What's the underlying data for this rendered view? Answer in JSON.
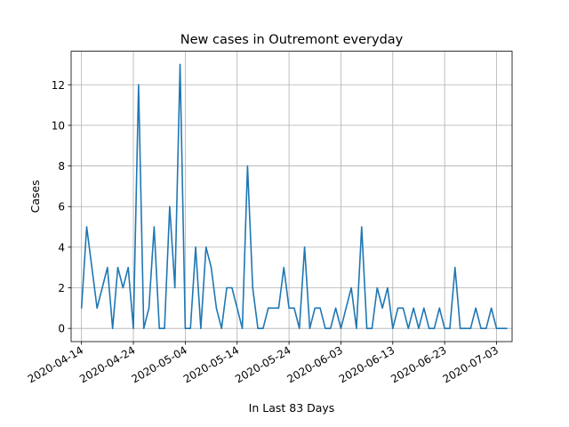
{
  "chart_data": {
    "type": "line",
    "title": "New cases in Outremont everyday",
    "xlabel": "In Last 83 Days",
    "ylabel": "Cases",
    "start_date": "2020-04-14",
    "x_ticks": [
      "2020-04-14",
      "2020-04-24",
      "2020-05-04",
      "2020-05-14",
      "2020-05-24",
      "2020-06-03",
      "2020-06-13",
      "2020-06-23",
      "2020-07-03"
    ],
    "y_ticks": [
      0,
      2,
      4,
      6,
      8,
      10,
      12
    ],
    "xlim": [
      "2020-04-12",
      "2020-07-06"
    ],
    "ylim": [
      -0.65,
      13.65
    ],
    "grid": true,
    "series": [
      {
        "color": "#1f77b4",
        "values": [
          1,
          5,
          3,
          1,
          2,
          3,
          0,
          3,
          2,
          3,
          0,
          12,
          0,
          1,
          5,
          0,
          0,
          6,
          2,
          13,
          0,
          0,
          4,
          0,
          4,
          3,
          1,
          0,
          2,
          2,
          1,
          0,
          8,
          2,
          0,
          0,
          1,
          1,
          1,
          3,
          1,
          1,
          0,
          4,
          0,
          1,
          1,
          0,
          0,
          1,
          0,
          1,
          2,
          0,
          5,
          0,
          0,
          2,
          1,
          2,
          0,
          1,
          1,
          0,
          1,
          0,
          1,
          0,
          0,
          1,
          0,
          0,
          3,
          0,
          0,
          0,
          1,
          0,
          0,
          1,
          0,
          0,
          0
        ]
      }
    ]
  }
}
